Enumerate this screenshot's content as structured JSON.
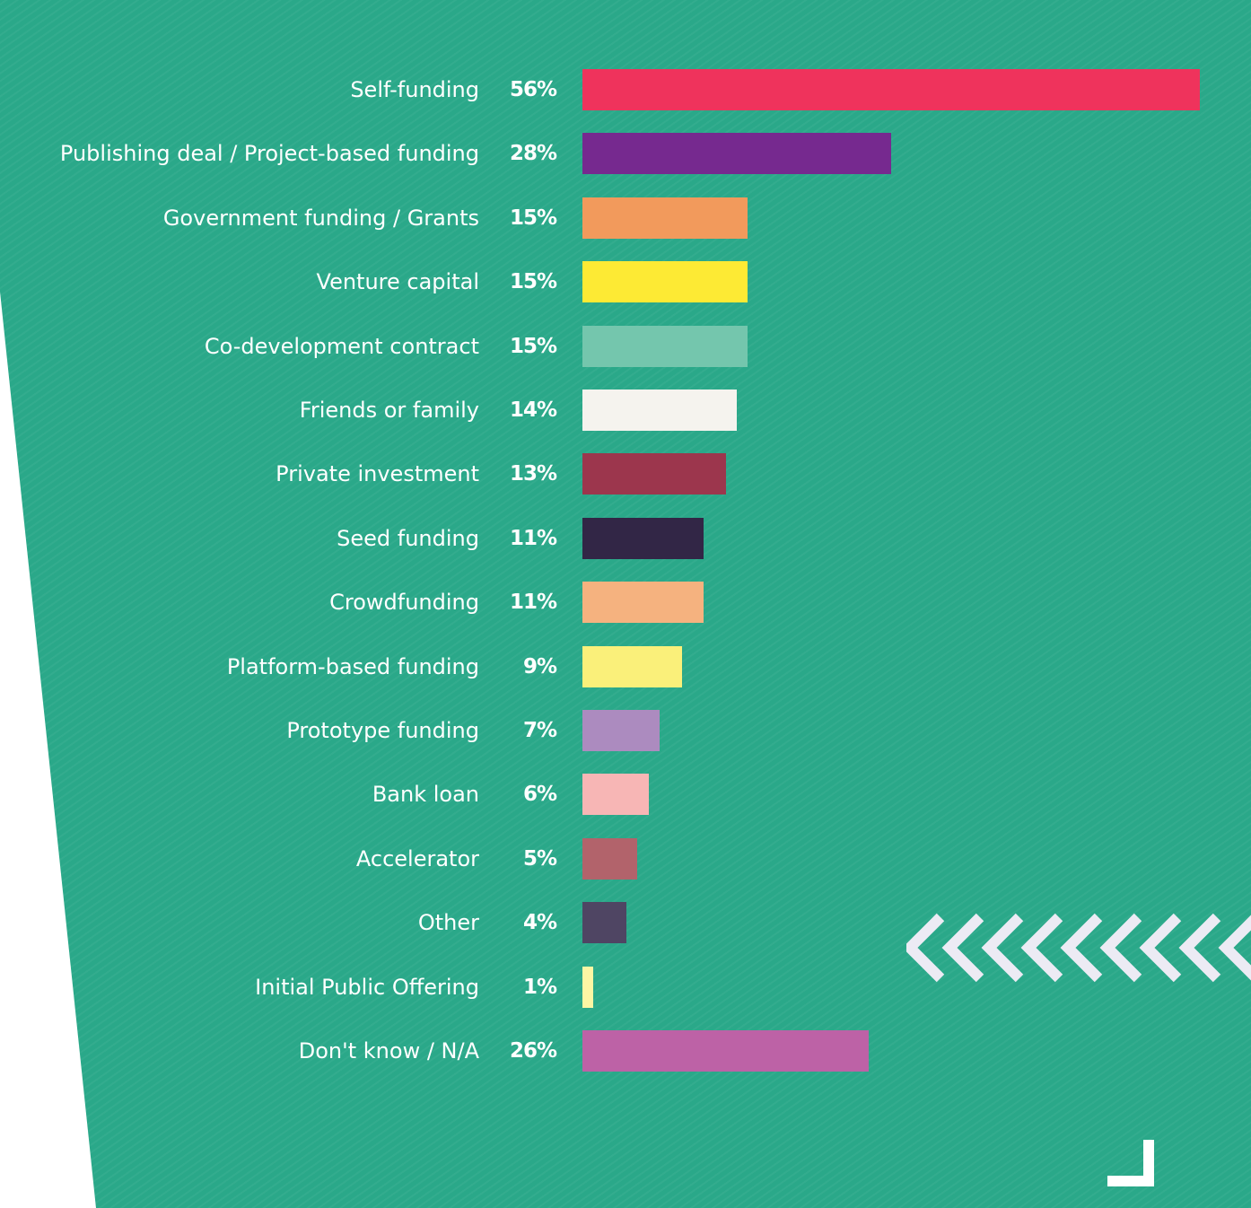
{
  "chart_data": {
    "type": "bar",
    "orientation": "horizontal",
    "title": "",
    "xlabel": "",
    "ylabel": "",
    "xlim": [
      0,
      56
    ],
    "grid": false,
    "categories": [
      "Self-funding",
      "Publishing deal / Project-based funding",
      "Government funding / Grants",
      "Venture capital",
      "Co-development contract",
      "Friends or family",
      "Private investment",
      "Seed funding",
      "Crowdfunding",
      "Platform-based funding",
      "Prototype funding",
      "Bank loan",
      "Accelerator",
      "Other",
      "Initial Public Offering",
      "Don't know / N/A"
    ],
    "values": [
      56,
      28,
      15,
      15,
      15,
      14,
      13,
      11,
      11,
      9,
      7,
      6,
      5,
      4,
      1,
      26
    ],
    "value_labels": [
      "56%",
      "28%",
      "15%",
      "15%",
      "15%",
      "14%",
      "13%",
      "11%",
      "11%",
      "9%",
      "7%",
      "6%",
      "5%",
      "4%",
      "1%",
      "26%"
    ],
    "colors": [
      "#ef335c",
      "#76298f",
      "#f29a5c",
      "#fdea34",
      "#74c6ad",
      "#f5f3ee",
      "#9c364d",
      "#322646",
      "#f5b27f",
      "#faf07a",
      "#ac8bbf",
      "#f7b6b5",
      "#b2636b",
      "#4f4563",
      "#fcf6a4",
      "#bd62a6"
    ],
    "unit": "%"
  },
  "colors": {
    "background": "#2aa889",
    "page": "#ffffff",
    "text": "#ffffff",
    "chevron": "#ecebf4"
  },
  "decorations": {
    "chevron_icon": "double-chevron-left-icon",
    "corner_icon": "corner-bracket-icon"
  }
}
